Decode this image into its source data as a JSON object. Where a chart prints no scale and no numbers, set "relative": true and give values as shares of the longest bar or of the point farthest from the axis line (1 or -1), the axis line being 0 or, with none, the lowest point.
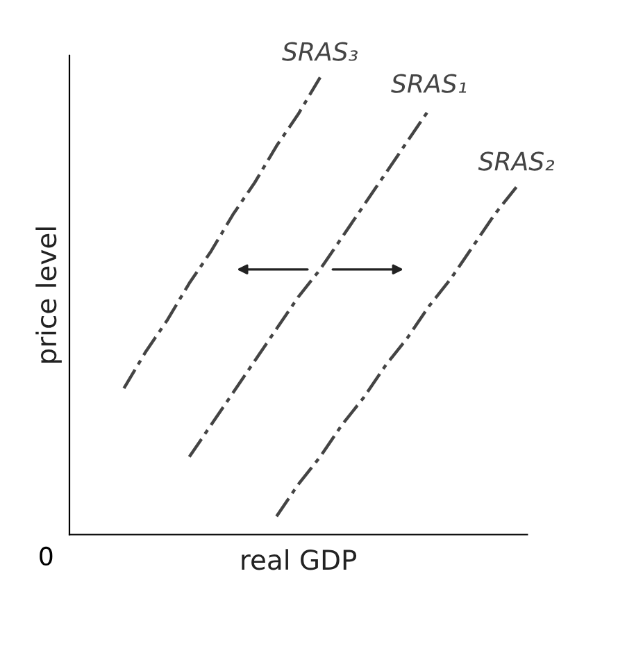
{
  "chart_data": {
    "type": "line",
    "relative": true,
    "xlabel": "real GDP",
    "ylabel": "price level",
    "legend": false,
    "line_style": "dashed",
    "marker": "none",
    "annotations": [
      "0"
    ],
    "categories": [
      null,
      null,
      null,
      null,
      null,
      null,
      null,
      null,
      null,
      null,
      null,
      null,
      null,
      null,
      null,
      null,
      null,
      null,
      null,
      null,
      null
    ],
    "series": [
      {
        "name": "SRAS₃",
        "color": "#444444",
        "values": [
          null,
          null,
          0.32,
          0.4,
          0.47,
          0.55,
          0.62,
          0.7,
          0.77,
          0.85,
          0.92,
          1.0,
          null,
          null,
          null,
          null,
          null,
          null,
          null,
          null,
          null
        ]
      },
      {
        "name": "SRAS₁",
        "color": "#444444",
        "values": [
          null,
          null,
          null,
          null,
          null,
          0.17,
          0.24,
          0.31,
          0.38,
          0.45,
          0.52,
          0.58,
          0.65,
          0.72,
          0.79,
          0.86,
          0.93,
          null,
          null,
          null,
          null
        ]
      },
      {
        "name": "SRAS₂",
        "color": "#444444",
        "values": [
          null,
          null,
          null,
          null,
          null,
          null,
          null,
          null,
          null,
          0.04,
          0.11,
          0.17,
          0.24,
          0.3,
          0.37,
          0.43,
          0.5,
          0.56,
          0.63,
          0.7,
          0.76
        ]
      }
    ]
  }
}
